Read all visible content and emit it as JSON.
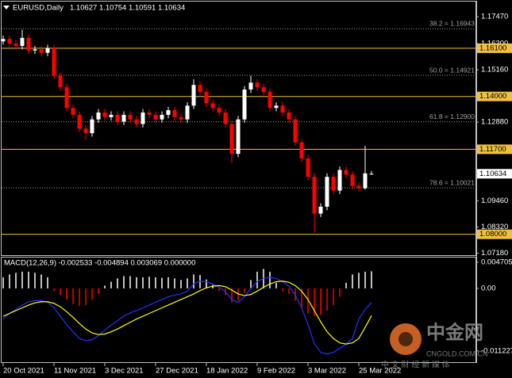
{
  "chart_data": [
    {
      "type": "candlestick",
      "title": "EURUSD,Daily",
      "ohlc_text": "1.10627 1.10754 1.10591 1.10634",
      "categories": [
        "20 Oct 2021",
        null,
        null,
        null,
        null,
        null,
        null,
        null,
        "11 Nov 2021",
        null,
        null,
        null,
        null,
        null,
        null,
        null,
        "3 Dec 2021",
        null,
        null,
        null,
        null,
        null,
        null,
        null,
        "27 Dec 2021",
        null,
        null,
        null,
        null,
        null,
        null,
        null,
        "18 Jan 2022",
        null,
        null,
        null,
        null,
        null,
        null,
        null,
        "9 Feb 2022",
        null,
        null,
        null,
        null,
        null,
        null,
        null,
        "3 Mar 2022",
        null,
        null,
        null,
        null,
        null,
        null,
        null,
        "25 Mar 2022",
        null,
        null
      ],
      "open": [
        1.164,
        1.165,
        1.163,
        1.162,
        1.1655,
        1.16,
        1.1605,
        1.159,
        1.161,
        1.149,
        1.144,
        1.135,
        1.132,
        1.126,
        1.124,
        1.13,
        1.133,
        1.131,
        1.132,
        1.129,
        1.132,
        1.13,
        1.128,
        1.133,
        1.132,
        1.13,
        1.132,
        1.134,
        1.131,
        1.13,
        1.136,
        1.145,
        1.142,
        1.137,
        1.135,
        1.133,
        1.128,
        1.115,
        1.13,
        1.143,
        1.146,
        1.144,
        1.142,
        1.135,
        1.136,
        1.133,
        1.13,
        1.12,
        1.113,
        1.105,
        1.089,
        1.092,
        1.105,
        1.099,
        1.108,
        1.106,
        1.101,
        1.1,
        1.10627
      ],
      "high": [
        1.1665,
        1.1665,
        1.1645,
        1.169,
        1.167,
        1.162,
        1.162,
        1.1625,
        1.1625,
        1.1505,
        1.1455,
        1.1365,
        1.1335,
        1.1275,
        1.1315,
        1.1345,
        1.1345,
        1.1335,
        1.1335,
        1.1335,
        1.1335,
        1.1315,
        1.1345,
        1.1345,
        1.1335,
        1.1335,
        1.1355,
        1.1355,
        1.1325,
        1.1375,
        1.1475,
        1.1465,
        1.1435,
        1.1385,
        1.1365,
        1.1345,
        1.1295,
        1.1315,
        1.1445,
        1.149,
        1.1475,
        1.1455,
        1.1435,
        1.1375,
        1.1375,
        1.1345,
        1.1315,
        1.1215,
        1.1145,
        1.1065,
        1.0935,
        1.1065,
        1.1065,
        1.1095,
        1.1095,
        1.1075,
        1.1025,
        1.1185,
        1.10754
      ],
      "low": [
        1.1625,
        1.1615,
        1.1605,
        1.1605,
        1.1585,
        1.1585,
        1.1575,
        1.1575,
        1.1475,
        1.1425,
        1.1335,
        1.1305,
        1.1245,
        1.121,
        1.1225,
        1.1285,
        1.1295,
        1.1295,
        1.1275,
        1.1275,
        1.1285,
        1.1265,
        1.1265,
        1.1305,
        1.1285,
        1.1285,
        1.1305,
        1.1295,
        1.1285,
        1.1285,
        1.1345,
        1.1405,
        1.1355,
        1.1335,
        1.1315,
        1.1265,
        1.111,
        1.1135,
        1.1285,
        1.1415,
        1.1425,
        1.1405,
        1.1335,
        1.1335,
        1.1315,
        1.1285,
        1.1185,
        1.1115,
        1.1035,
        1.0806,
        1.0875,
        1.0905,
        1.0975,
        1.0975,
        1.1045,
        1.0995,
        1.0985,
        1.0995,
        1.10591
      ],
      "close": [
        1.165,
        1.163,
        1.162,
        1.1655,
        1.16,
        1.1605,
        1.159,
        1.161,
        1.149,
        1.144,
        1.135,
        1.132,
        1.126,
        1.124,
        1.13,
        1.133,
        1.131,
        1.132,
        1.129,
        1.132,
        1.13,
        1.128,
        1.133,
        1.132,
        1.13,
        1.132,
        1.134,
        1.131,
        1.13,
        1.136,
        1.145,
        1.142,
        1.137,
        1.135,
        1.133,
        1.128,
        1.115,
        1.13,
        1.143,
        1.146,
        1.144,
        1.142,
        1.135,
        1.136,
        1.133,
        1.13,
        1.12,
        1.113,
        1.105,
        1.089,
        1.092,
        1.105,
        1.099,
        1.108,
        1.106,
        1.101,
        1.1,
        1.1065,
        1.10634
      ],
      "up_color": "#ffffff",
      "down_color": "#ff0000",
      "ylim": [
        1.0709,
        1.1813
      ],
      "yticks": [
        {
          "value": 1.1747,
          "label": "1.17470"
        },
        {
          "value": 1.163,
          "label": "1.16300"
        },
        {
          "value": 1.1516,
          "label": "1.15160"
        },
        {
          "value": 1.1288,
          "label": "1.12880"
        },
        {
          "value": 1.0946,
          "label": "1.09460"
        },
        {
          "value": 1.0832,
          "label": "1.08320"
        },
        {
          "value": 1.0718,
          "label": "1.07180"
        }
      ],
      "level_color": "#f0c040",
      "levels": [
        {
          "value": 1.161,
          "label": "1.16100"
        },
        {
          "value": 1.14,
          "label": "1.14000"
        },
        {
          "value": 1.117,
          "label": "1.11700"
        },
        {
          "value": 1.08,
          "label": "1.08000"
        }
      ],
      "fib_color": "#a0a0a0",
      "fib_levels": [
        {
          "value": 1.16943,
          "label": "38.2 = 1.16943"
        },
        {
          "value": 1.14921,
          "label": "50.0 = 1.14921"
        },
        {
          "value": 1.129,
          "label": "61.8 = 1.12900"
        },
        {
          "value": 1.10021,
          "label": "78.6 = 1.10021"
        }
      ],
      "last_price": {
        "value": 1.10634,
        "label": "1.10634"
      }
    },
    {
      "type": "macd",
      "title": "MACD(12,26,9) -0.002533 -0.004894 0.003069 0.000000",
      "histogram": [
        0.002,
        0.0025,
        0.0028,
        0.003,
        0.003,
        0.0028,
        0.0025,
        0.002,
        -0.0005,
        -0.0012,
        -0.002,
        -0.0028,
        -0.0032,
        -0.003,
        -0.002,
        -0.001,
        0.0005,
        0.0012,
        0.0018,
        0.0022,
        0.0022,
        0.002,
        0.002,
        0.0021,
        0.002,
        0.0019,
        0.002,
        0.0018,
        0.0015,
        0.0018,
        0.0025,
        0.0024,
        0.0016,
        0.0006,
        -0.0005,
        -0.0012,
        -0.0025,
        -0.0022,
        -0.0008,
        0.0015,
        0.003,
        0.0035,
        0.003,
        0.001,
        -0.0005,
        -0.001,
        -0.0022,
        -0.0035,
        -0.0045,
        -0.005,
        -0.0048,
        -0.004,
        -0.003,
        -0.0015,
        0.001,
        0.0025,
        0.0028,
        0.003,
        0.003069
      ],
      "pos_color": "#ffffff",
      "neg_color": "#ff0000",
      "series": [
        {
          "color": "#2233ff",
          "values": [
            -0.0055,
            -0.0045,
            -0.0038,
            -0.003,
            -0.0024,
            -0.0022,
            -0.0022,
            -0.0025,
            -0.0035,
            -0.005,
            -0.0065,
            -0.0078,
            -0.009,
            -0.0094,
            -0.0092,
            -0.0085,
            -0.0075,
            -0.0066,
            -0.0058,
            -0.005,
            -0.0044,
            -0.004,
            -0.0035,
            -0.003,
            -0.0025,
            -0.002,
            -0.0015,
            -0.0012,
            -0.001,
            -0.0005,
            0.0008,
            0.0013,
            0.0012,
            0.0008,
            0.0002,
            -0.0006,
            -0.002,
            -0.0025,
            -0.0015,
            0.0,
            0.0012,
            0.0018,
            0.002,
            0.0018,
            0.0012,
            0.0004,
            -0.0012,
            -0.0035,
            -0.0065,
            -0.01,
            -0.0115,
            -0.0118,
            -0.0115,
            -0.0108,
            -0.01,
            -0.009,
            -0.0055,
            -0.0038,
            -0.002533
          ]
        },
        {
          "color": "#ffff00",
          "values": [
            -0.005,
            -0.0045,
            -0.004,
            -0.0035,
            -0.003,
            -0.0026,
            -0.0024,
            -0.0024,
            -0.0027,
            -0.0033,
            -0.0042,
            -0.0052,
            -0.0063,
            -0.0073,
            -0.008,
            -0.0083,
            -0.0082,
            -0.0078,
            -0.0073,
            -0.0067,
            -0.0061,
            -0.0055,
            -0.005,
            -0.0045,
            -0.004,
            -0.0035,
            -0.003,
            -0.0025,
            -0.002,
            -0.0015,
            -0.001,
            -0.0004,
            0.0001,
            0.0004,
            0.0005,
            0.0003,
            -0.0003,
            -0.001,
            -0.0013,
            -0.0011,
            -0.0005,
            0.0002,
            0.0008,
            0.0012,
            0.0013,
            0.0011,
            0.0005,
            -0.0005,
            -0.002,
            -0.004,
            -0.006,
            -0.0078,
            -0.009,
            -0.0098,
            -0.01,
            -0.0098,
            -0.009,
            -0.007,
            -0.004894
          ]
        }
      ],
      "ylim": [
        -0.0134,
        0.0054
      ],
      "yticks": [
        0.004705,
        {
          "value": 0,
          "label": "0.00"
        },
        -0.011227
      ]
    }
  ],
  "watermark": {
    "brand": "中金网",
    "site": "CNGOLD.COM.CN",
    "slogan": "中 文 财 经 新 媒 体"
  }
}
